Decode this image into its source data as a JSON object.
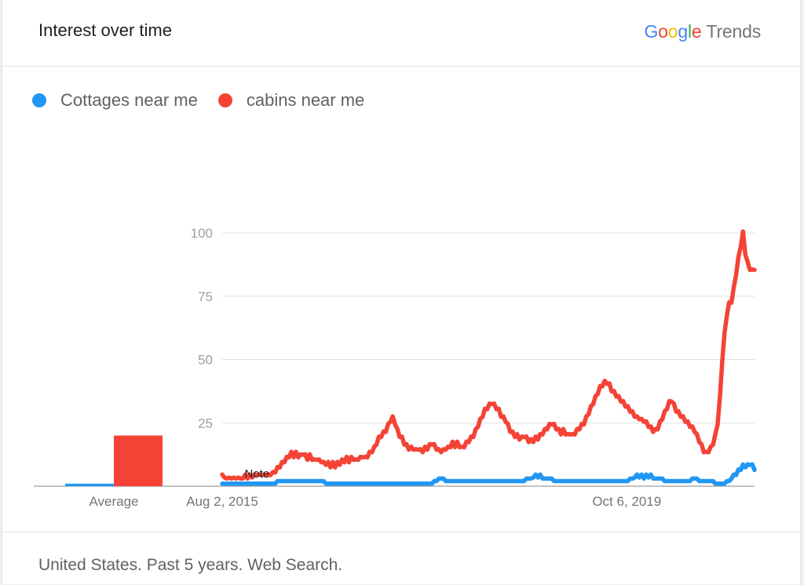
{
  "header": {
    "title": "Interest over time",
    "brand": {
      "letters": [
        {
          "char": "G",
          "color": "#4285F4"
        },
        {
          "char": "o",
          "color": "#EA4335"
        },
        {
          "char": "o",
          "color": "#FBBC05"
        },
        {
          "char": "g",
          "color": "#4285F4"
        },
        {
          "char": "l",
          "color": "#34A853"
        },
        {
          "char": "e",
          "color": "#EA4335"
        }
      ],
      "product": "Trends"
    }
  },
  "legend": [
    {
      "label": "Cottages near me",
      "color": "#2196F3"
    },
    {
      "label": "cabins near me",
      "color": "#F44336"
    }
  ],
  "footer": {
    "text": "United States. Past 5 years. Web Search."
  },
  "chart_data": {
    "type": "line",
    "y_ticks": [
      25,
      50,
      75,
      100
    ],
    "ylim": [
      0,
      100
    ],
    "x_tick_labels": [
      "Aug 2, 2015",
      "Oct 6, 2019"
    ],
    "x_tick_positions": [
      0,
      0.76
    ],
    "grid": true,
    "note_label": "Note",
    "average_label": "Average",
    "averages": [
      {
        "series": "Cottages near me",
        "value": 1
      },
      {
        "series": "cabins near me",
        "value": 20
      }
    ],
    "series": [
      {
        "name": "Cottages near me",
        "color": "#2196F3",
        "values": [
          1,
          1,
          1,
          1,
          1,
          1,
          1,
          1,
          1,
          1,
          1,
          1,
          1,
          1,
          1,
          1,
          1,
          1,
          1,
          1,
          1,
          1,
          1,
          1,
          2,
          2,
          2,
          2,
          2,
          2,
          2,
          2,
          2,
          2,
          2,
          2,
          2,
          2,
          2,
          2,
          2,
          2,
          2,
          2,
          2,
          1,
          1,
          1,
          1,
          1,
          1,
          1,
          1,
          1,
          1,
          1,
          1,
          1,
          1,
          1,
          1,
          1,
          1,
          1,
          1,
          1,
          1,
          1,
          1,
          1,
          1,
          1,
          1,
          1,
          1,
          1,
          1,
          1,
          1,
          1,
          1,
          1,
          1,
          1,
          1,
          1,
          1,
          1,
          1,
          1,
          1,
          1,
          2,
          2,
          3,
          3,
          3,
          2,
          2,
          2,
          2,
          2,
          2,
          2,
          2,
          2,
          2,
          2,
          2,
          2,
          2,
          2,
          2,
          2,
          2,
          2,
          2,
          2,
          2,
          2,
          2,
          2,
          2,
          2,
          2,
          2,
          2,
          2,
          2,
          2,
          2,
          2,
          3,
          3,
          3,
          4,
          4,
          4,
          4,
          3,
          3,
          3,
          3,
          3,
          2,
          2,
          2,
          2,
          2,
          2,
          2,
          2,
          2,
          2,
          2,
          2,
          2,
          2,
          2,
          2,
          2,
          2,
          2,
          2,
          2,
          2,
          2,
          2,
          2,
          2,
          2,
          2,
          2,
          2,
          2,
          2,
          2,
          3,
          3,
          4,
          4,
          4,
          4,
          3,
          4,
          4,
          4,
          3,
          3,
          3,
          3,
          3,
          2,
          2,
          2,
          2,
          2,
          2,
          2,
          2,
          2,
          2,
          2,
          2,
          3,
          3,
          3,
          2,
          2,
          2,
          2,
          2,
          2,
          2,
          1,
          1,
          1,
          1,
          1,
          2,
          2,
          3,
          4,
          5,
          6,
          7,
          8,
          8,
          8,
          9,
          8,
          7
        ]
      },
      {
        "name": "cabins near me",
        "color": "#F44336",
        "values": [
          4,
          4,
          3,
          4,
          3,
          4,
          3,
          4,
          3,
          3,
          4,
          3,
          4,
          4,
          4,
          5,
          4,
          5,
          4,
          5,
          4,
          5,
          5,
          6,
          7,
          8,
          9,
          10,
          11,
          12,
          13,
          12,
          13,
          12,
          12,
          13,
          12,
          11,
          12,
          11,
          10,
          11,
          10,
          10,
          9,
          9,
          9,
          8,
          9,
          8,
          9,
          9,
          10,
          10,
          11,
          10,
          11,
          11,
          10,
          11,
          11,
          12,
          11,
          12,
          13,
          14,
          15,
          17,
          19,
          20,
          21,
          22,
          24,
          26,
          27,
          25,
          22,
          20,
          19,
          17,
          16,
          15,
          15,
          15,
          14,
          15,
          14,
          14,
          15,
          15,
          16,
          17,
          16,
          15,
          14,
          14,
          14,
          15,
          15,
          16,
          17,
          16,
          17,
          16,
          15,
          16,
          17,
          18,
          19,
          20,
          22,
          24,
          26,
          28,
          30,
          31,
          32,
          33,
          32,
          31,
          30,
          28,
          27,
          26,
          24,
          22,
          21,
          20,
          20,
          19,
          19,
          20,
          19,
          18,
          18,
          18,
          19,
          19,
          20,
          21,
          22,
          23,
          24,
          25,
          24,
          23,
          22,
          21,
          22,
          21,
          20,
          21,
          20,
          21,
          22,
          23,
          24,
          25,
          27,
          29,
          31,
          33,
          35,
          37,
          39,
          40,
          41,
          41,
          40,
          38,
          37,
          36,
          35,
          34,
          33,
          32,
          31,
          30,
          29,
          28,
          27,
          27,
          26,
          26,
          25,
          24,
          23,
          22,
          22,
          23,
          25,
          27,
          29,
          31,
          33,
          34,
          32,
          30,
          29,
          28,
          27,
          26,
          25,
          24,
          23,
          22,
          20,
          18,
          16,
          14,
          13,
          14,
          15,
          17,
          20,
          25,
          35,
          50,
          60,
          68,
          72,
          73,
          78,
          84,
          90,
          95,
          100,
          92,
          88,
          86,
          85,
          86
        ]
      }
    ]
  }
}
